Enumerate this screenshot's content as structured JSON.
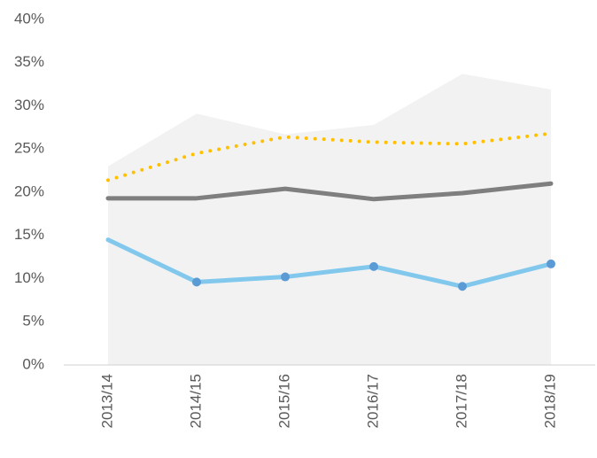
{
  "chart_data": {
    "type": "line",
    "categories": [
      "2013/14",
      "2014/15",
      "2015/16",
      "2016/17",
      "2017/18",
      "2018/19"
    ],
    "area": {
      "color": "#f2f2f3",
      "values": [
        23.0,
        29.1,
        26.7,
        27.8,
        33.7,
        31.9
      ]
    },
    "series": [
      {
        "color": "#7f7f7f",
        "style": "solid",
        "values": [
          19.3,
          19.3,
          20.4,
          19.2,
          19.9,
          21.0
        ]
      },
      {
        "color": "#ffc000",
        "style": "dotted",
        "values": [
          21.4,
          24.5,
          26.4,
          25.8,
          25.6,
          26.8
        ]
      },
      {
        "color": "#82c8ec",
        "style": "solid",
        "marker_color": "#5b9bd5",
        "markers": [
          false,
          true,
          true,
          true,
          true,
          true
        ],
        "values": [
          14.5,
          9.6,
          10.2,
          11.4,
          9.1,
          11.7
        ]
      }
    ],
    "ylim": [
      0,
      40
    ],
    "yticks": [
      {
        "value": 0,
        "label": "0%"
      },
      {
        "value": 5,
        "label": "5%"
      },
      {
        "value": 10,
        "label": "10%"
      },
      {
        "value": 15,
        "label": "15%"
      },
      {
        "value": 20,
        "label": "20%"
      },
      {
        "value": 25,
        "label": "25%"
      },
      {
        "value": 30,
        "label": "30%"
      },
      {
        "value": 35,
        "label": "35%"
      },
      {
        "value": 40,
        "label": "40%"
      }
    ],
    "grid": false
  }
}
